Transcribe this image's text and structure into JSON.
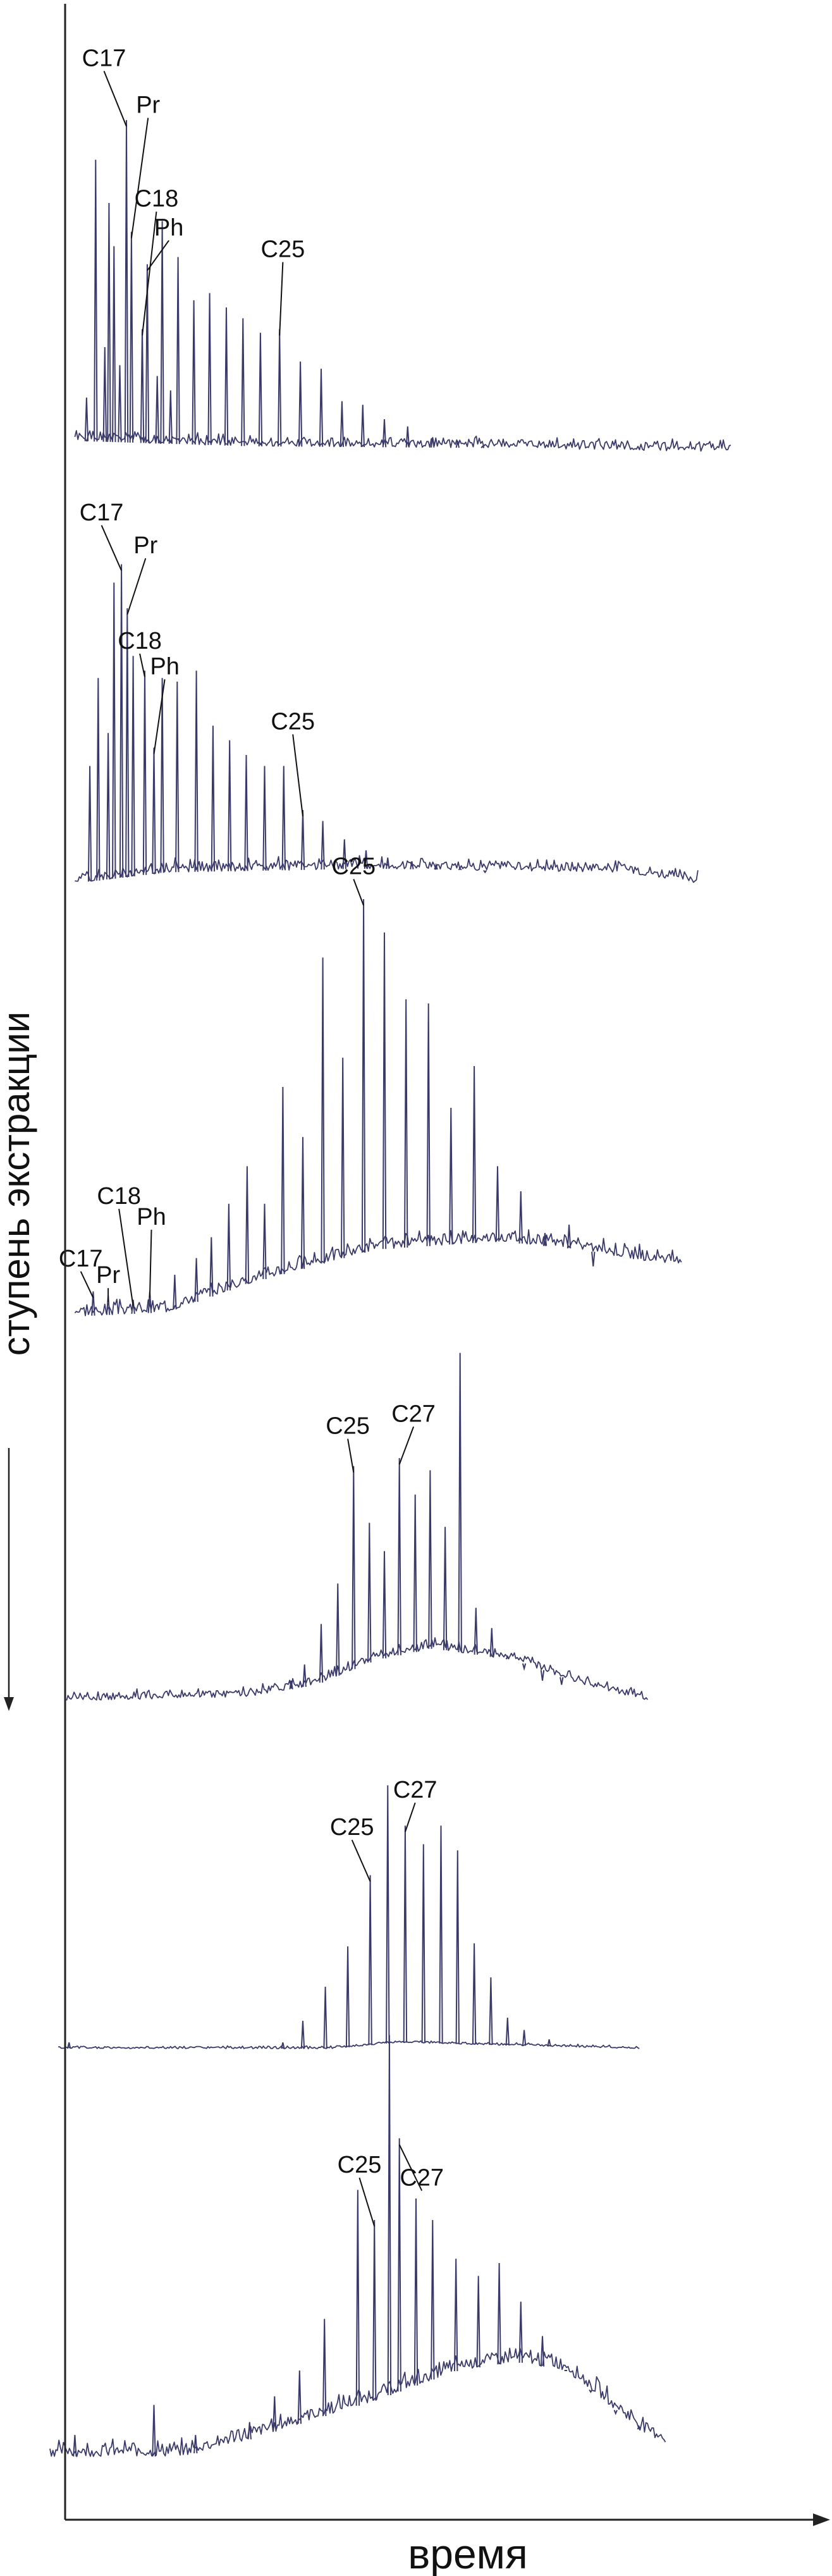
{
  "chart_data": {
    "type": "line",
    "title": "",
    "xlabel": "время",
    "ylabel": "ступень экстракции",
    "y_direction": "down",
    "grid": false,
    "legend": "none",
    "colors": {
      "trace": "#3a3a6a",
      "axis": "#222222",
      "text": "#111111"
    },
    "panels": [
      {
        "name": "1",
        "baseline": [
          [
            0.09,
            0.04
          ],
          [
            0.3,
            0.025
          ],
          [
            0.6,
            0.02
          ],
          [
            0.88,
            0.01
          ]
        ],
        "noise": 0.035,
        "peaks": [
          [
            0.104,
            0.16
          ],
          [
            0.115,
            0.82
          ],
          [
            0.126,
            0.3
          ],
          [
            0.131,
            0.7
          ],
          [
            0.137,
            0.58
          ],
          [
            0.144,
            0.25
          ],
          [
            0.152,
            0.93
          ],
          [
            0.158,
            0.62
          ],
          [
            0.171,
            0.35
          ],
          [
            0.177,
            0.53
          ],
          [
            0.189,
            0.22
          ],
          [
            0.195,
            0.65
          ],
          [
            0.205,
            0.18
          ],
          [
            0.214,
            0.55
          ],
          [
            0.233,
            0.43
          ],
          [
            0.252,
            0.45
          ],
          [
            0.272,
            0.41
          ],
          [
            0.292,
            0.38
          ],
          [
            0.313,
            0.34
          ],
          [
            0.336,
            0.35
          ],
          [
            0.361,
            0.26
          ],
          [
            0.386,
            0.24
          ],
          [
            0.411,
            0.15
          ],
          [
            0.436,
            0.14
          ],
          [
            0.462,
            0.1
          ],
          [
            0.49,
            0.08
          ],
          [
            0.52,
            0.05
          ],
          [
            0.55,
            0.04
          ],
          [
            0.58,
            0.025
          ]
        ],
        "labels": [
          {
            "text": "C17",
            "px": 0.152,
            "tx": 0.125,
            "ty": 1.08
          },
          {
            "text": "Pr",
            "px": 0.158,
            "tx": 0.178,
            "ty": 0.95
          },
          {
            "text": "C18",
            "px": 0.171,
            "tx": 0.188,
            "ty": 0.69
          },
          {
            "text": "Ph",
            "px": 0.177,
            "tx": 0.203,
            "ty": 0.61
          },
          {
            "text": "C25",
            "px": 0.336,
            "tx": 0.34,
            "ty": 0.55
          }
        ]
      },
      {
        "name": "2",
        "baseline": [
          [
            0.09,
            0.0
          ],
          [
            0.2,
            0.03
          ],
          [
            0.45,
            0.04
          ],
          [
            0.75,
            0.03
          ],
          [
            0.84,
            0.0
          ]
        ],
        "noise": 0.04,
        "peaks": [
          [
            0.108,
            0.32
          ],
          [
            0.118,
            0.56
          ],
          [
            0.13,
            0.41
          ],
          [
            0.137,
            0.82
          ],
          [
            0.146,
            0.87
          ],
          [
            0.153,
            0.75
          ],
          [
            0.16,
            0.62
          ],
          [
            0.174,
            0.58
          ],
          [
            0.185,
            0.37
          ],
          [
            0.195,
            0.56
          ],
          [
            0.213,
            0.55
          ],
          [
            0.236,
            0.58
          ],
          [
            0.256,
            0.43
          ],
          [
            0.276,
            0.39
          ],
          [
            0.296,
            0.35
          ],
          [
            0.318,
            0.32
          ],
          [
            0.341,
            0.32
          ],
          [
            0.364,
            0.2
          ],
          [
            0.388,
            0.17
          ],
          [
            0.414,
            0.12
          ],
          [
            0.44,
            0.09
          ],
          [
            0.466,
            0.07
          ],
          [
            0.495,
            0.06
          ],
          [
            0.524,
            0.05
          ],
          [
            0.553,
            0.04
          ],
          [
            0.583,
            0.03
          ]
        ],
        "labels": [
          {
            "text": "C17",
            "px": 0.146,
            "tx": 0.122,
            "ty": 0.99
          },
          {
            "text": "Pr",
            "px": 0.153,
            "tx": 0.175,
            "ty": 0.9
          },
          {
            "text": "C18",
            "px": 0.174,
            "tx": 0.168,
            "ty": 0.64
          },
          {
            "text": "Ph",
            "px": 0.185,
            "tx": 0.198,
            "ty": 0.57
          },
          {
            "text": "C25",
            "px": 0.364,
            "tx": 0.352,
            "ty": 0.42
          }
        ]
      },
      {
        "name": "3",
        "baseline": [
          [
            0.09,
            0.0
          ],
          [
            0.2,
            0.01
          ],
          [
            0.3,
            0.08
          ],
          [
            0.45,
            0.16
          ],
          [
            0.6,
            0.18
          ],
          [
            0.7,
            0.16
          ],
          [
            0.78,
            0.13
          ],
          [
            0.82,
            0.12
          ]
        ],
        "noise": 0.04,
        "peaks": [
          [
            0.112,
            0.06
          ],
          [
            0.13,
            0.05
          ],
          [
            0.16,
            0.04
          ],
          [
            0.18,
            0.06
          ],
          [
            0.21,
            0.1
          ],
          [
            0.236,
            0.14
          ],
          [
            0.254,
            0.19
          ],
          [
            0.275,
            0.27
          ],
          [
            0.297,
            0.36
          ],
          [
            0.318,
            0.27
          ],
          [
            0.34,
            0.55
          ],
          [
            0.364,
            0.43
          ],
          [
            0.388,
            0.86
          ],
          [
            0.412,
            0.62
          ],
          [
            0.437,
            1.0
          ],
          [
            0.462,
            0.92
          ],
          [
            0.488,
            0.76
          ],
          [
            0.515,
            0.75
          ],
          [
            0.542,
            0.5
          ],
          [
            0.57,
            0.6
          ],
          [
            0.598,
            0.36
          ],
          [
            0.626,
            0.3
          ],
          [
            0.655,
            0.2
          ],
          [
            0.684,
            0.22
          ],
          [
            0.713,
            0.12
          ]
        ],
        "labels": [
          {
            "text": "C17",
            "px": 0.112,
            "tx": 0.097,
            "ty": 0.12
          },
          {
            "text": "Pr",
            "px": 0.13,
            "tx": 0.13,
            "ty": 0.08
          },
          {
            "text": "C18",
            "px": 0.16,
            "tx": 0.143,
            "ty": 0.27
          },
          {
            "text": "Ph",
            "px": 0.18,
            "tx": 0.182,
            "ty": 0.22
          },
          {
            "text": "C25",
            "px": 0.437,
            "tx": 0.425,
            "ty": 1.06
          }
        ]
      },
      {
        "name": "4",
        "baseline": [
          [
            0.08,
            0.0
          ],
          [
            0.3,
            0.01
          ],
          [
            0.38,
            0.04
          ],
          [
            0.45,
            0.1
          ],
          [
            0.52,
            0.13
          ],
          [
            0.62,
            0.1
          ],
          [
            0.7,
            0.04
          ],
          [
            0.78,
            0.0
          ]
        ],
        "noise": 0.03,
        "peaks": [
          [
            0.35,
            0.05
          ],
          [
            0.366,
            0.09
          ],
          [
            0.386,
            0.19
          ],
          [
            0.406,
            0.29
          ],
          [
            0.425,
            0.58
          ],
          [
            0.444,
            0.44
          ],
          [
            0.462,
            0.37
          ],
          [
            0.48,
            0.6
          ],
          [
            0.499,
            0.51
          ],
          [
            0.517,
            0.57
          ],
          [
            0.535,
            0.43
          ],
          [
            0.553,
            0.86
          ],
          [
            0.572,
            0.23
          ],
          [
            0.591,
            0.18
          ],
          [
            0.61,
            0.11
          ],
          [
            0.63,
            0.08
          ],
          [
            0.652,
            0.05
          ],
          [
            0.675,
            0.04
          ]
        ],
        "labels": [
          {
            "text": "C25",
            "px": 0.425,
            "tx": 0.418,
            "ty": 0.66
          },
          {
            "text": "C27",
            "px": 0.48,
            "tx": 0.497,
            "ty": 0.69
          }
        ]
      },
      {
        "name": "5",
        "baseline": [
          [
            0.07,
            0.0
          ],
          [
            0.4,
            0.0
          ],
          [
            0.48,
            0.02
          ],
          [
            0.62,
            0.01
          ],
          [
            0.77,
            0.0
          ]
        ],
        "noise": 0.01,
        "peaks": [
          [
            0.083,
            0.02
          ],
          [
            0.34,
            0.02
          ],
          [
            0.364,
            0.09
          ],
          [
            0.391,
            0.2
          ],
          [
            0.418,
            0.33
          ],
          [
            0.445,
            0.56
          ],
          [
            0.466,
            0.85
          ],
          [
            0.487,
            0.72
          ],
          [
            0.509,
            0.66
          ],
          [
            0.53,
            0.72
          ],
          [
            0.55,
            0.64
          ],
          [
            0.57,
            0.34
          ],
          [
            0.59,
            0.23
          ],
          [
            0.61,
            0.1
          ],
          [
            0.63,
            0.06
          ],
          [
            0.66,
            0.03
          ]
        ],
        "labels": [
          {
            "text": "C25",
            "px": 0.445,
            "tx": 0.423,
            "ty": 0.69
          },
          {
            "text": "C27",
            "px": 0.487,
            "tx": 0.499,
            "ty": 0.81
          }
        ]
      },
      {
        "name": "6",
        "baseline": [
          [
            0.06,
            0.0
          ],
          [
            0.22,
            0.0
          ],
          [
            0.3,
            0.04
          ],
          [
            0.45,
            0.13
          ],
          [
            0.55,
            0.2
          ],
          [
            0.62,
            0.22
          ],
          [
            0.68,
            0.2
          ],
          [
            0.72,
            0.14
          ],
          [
            0.77,
            0.06
          ],
          [
            0.8,
            0.03
          ]
        ],
        "noise": 0.045,
        "peaks": [
          [
            0.09,
            0.05
          ],
          [
            0.185,
            0.12
          ],
          [
            0.235,
            0.05
          ],
          [
            0.3,
            0.08
          ],
          [
            0.33,
            0.14
          ],
          [
            0.36,
            0.2
          ],
          [
            0.39,
            0.32
          ],
          [
            0.43,
            0.62
          ],
          [
            0.45,
            0.55
          ],
          [
            0.468,
            0.98
          ],
          [
            0.48,
            0.74
          ],
          [
            0.5,
            0.6
          ],
          [
            0.52,
            0.55
          ],
          [
            0.548,
            0.46
          ],
          [
            0.575,
            0.42
          ],
          [
            0.6,
            0.45
          ],
          [
            0.626,
            0.36
          ],
          [
            0.652,
            0.28
          ],
          [
            0.68,
            0.2
          ],
          [
            0.71,
            0.15
          ],
          [
            0.74,
            0.1
          ],
          [
            0.768,
            0.07
          ]
        ],
        "labels": [
          {
            "text": "C25",
            "px": 0.448,
            "tx": 0.432,
            "ty": 0.66
          },
          {
            "text": "C27",
            "px": 0.48,
            "tx": 0.507,
            "ty": 0.63
          }
        ]
      }
    ]
  }
}
